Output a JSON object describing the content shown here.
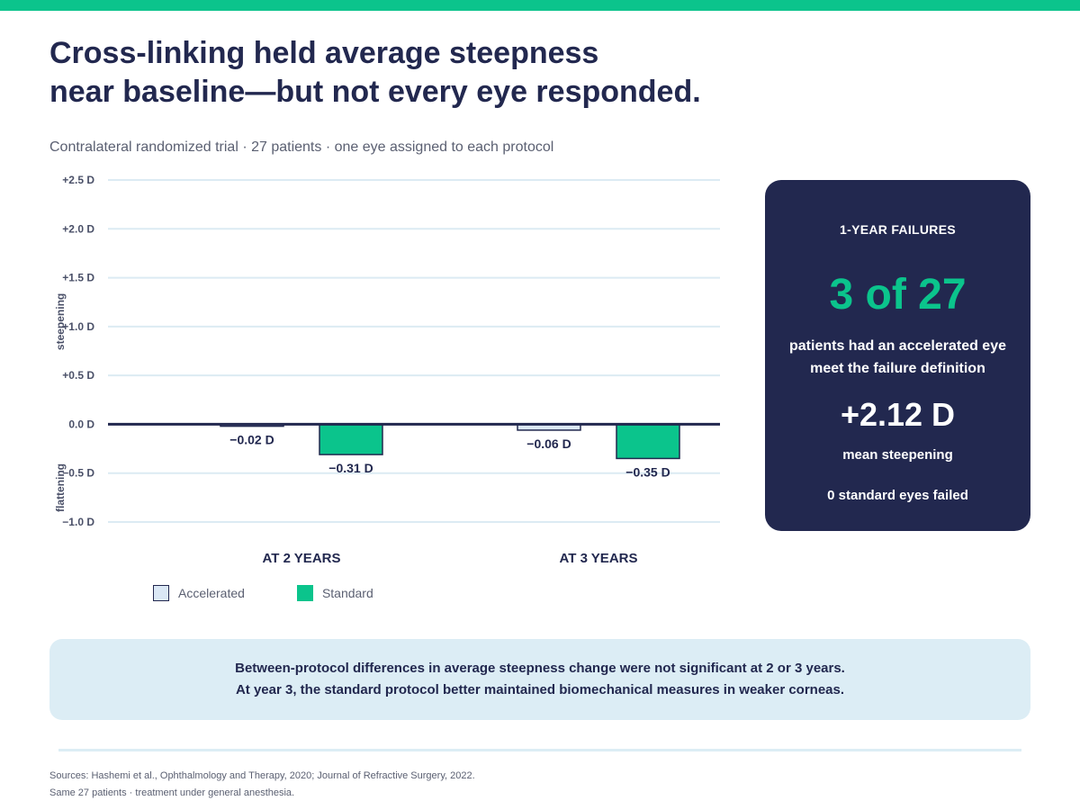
{
  "title": {
    "line1": "Cross-linking held average steepness",
    "line2": "near baseline—but not every eye responded."
  },
  "subtitle": "Contralateral randomized trial · 27 patients · one eye assigned to each protocol",
  "chart_data": {
    "type": "bar",
    "categories": [
      "AT 2 YEARS",
      "AT 3 YEARS"
    ],
    "series": [
      {
        "name": "Accelerated",
        "values": [
          -0.02,
          -0.06
        ],
        "labels": [
          "−0.02 D",
          "−0.06 D"
        ],
        "color": "#dbe8f5"
      },
      {
        "name": "Standard",
        "values": [
          -0.31,
          -0.35
        ],
        "labels": [
          "−0.31 D",
          "−0.35 D"
        ],
        "color": "#0bc48c"
      }
    ],
    "y_ticks": [
      {
        "value": 2.5,
        "label": "+2.5 D"
      },
      {
        "value": 2.0,
        "label": "+2.0 D"
      },
      {
        "value": 1.5,
        "label": "+1.5 D"
      },
      {
        "value": 1.0,
        "label": "+1.0 D"
      },
      {
        "value": 0.5,
        "label": "+0.5 D"
      },
      {
        "value": 0.0,
        "label": "0.0 D"
      },
      {
        "value": -0.5,
        "label": "−0.5 D"
      },
      {
        "value": -1.0,
        "label": "−1.0 D"
      }
    ],
    "ylim": [
      -1.0,
      2.5
    ],
    "y_direction_labels": {
      "positive": "steepening",
      "negative": "flattening"
    },
    "grid": true,
    "legend_position": "bottom-left"
  },
  "callout": {
    "heading": "1-YEAR FAILURES",
    "big_value": "3 of 27",
    "description": "patients had an accelerated eye meet the failure definition",
    "mean_value": "+2.12 D",
    "mean_label": "mean steepening",
    "standard_failures": "0 standard eyes failed"
  },
  "note": {
    "line1": "Between-protocol differences in average steepness change were not significant at 2 or 3 years.",
    "line2": "At year 3, the standard protocol better maintained biomechanical measures in weaker corneas."
  },
  "sources": {
    "line1": "Sources: Hashemi et al., Ophthalmology and Therapy, 2020; Journal of Refractive Surgery, 2022.",
    "line2": "Same 27 patients · treatment under general anesthesia."
  },
  "colors": {
    "accent": "#0bc48c",
    "navy": "#22284f",
    "light_blue": "#dcedf5",
    "grid": "#dcebf3"
  }
}
